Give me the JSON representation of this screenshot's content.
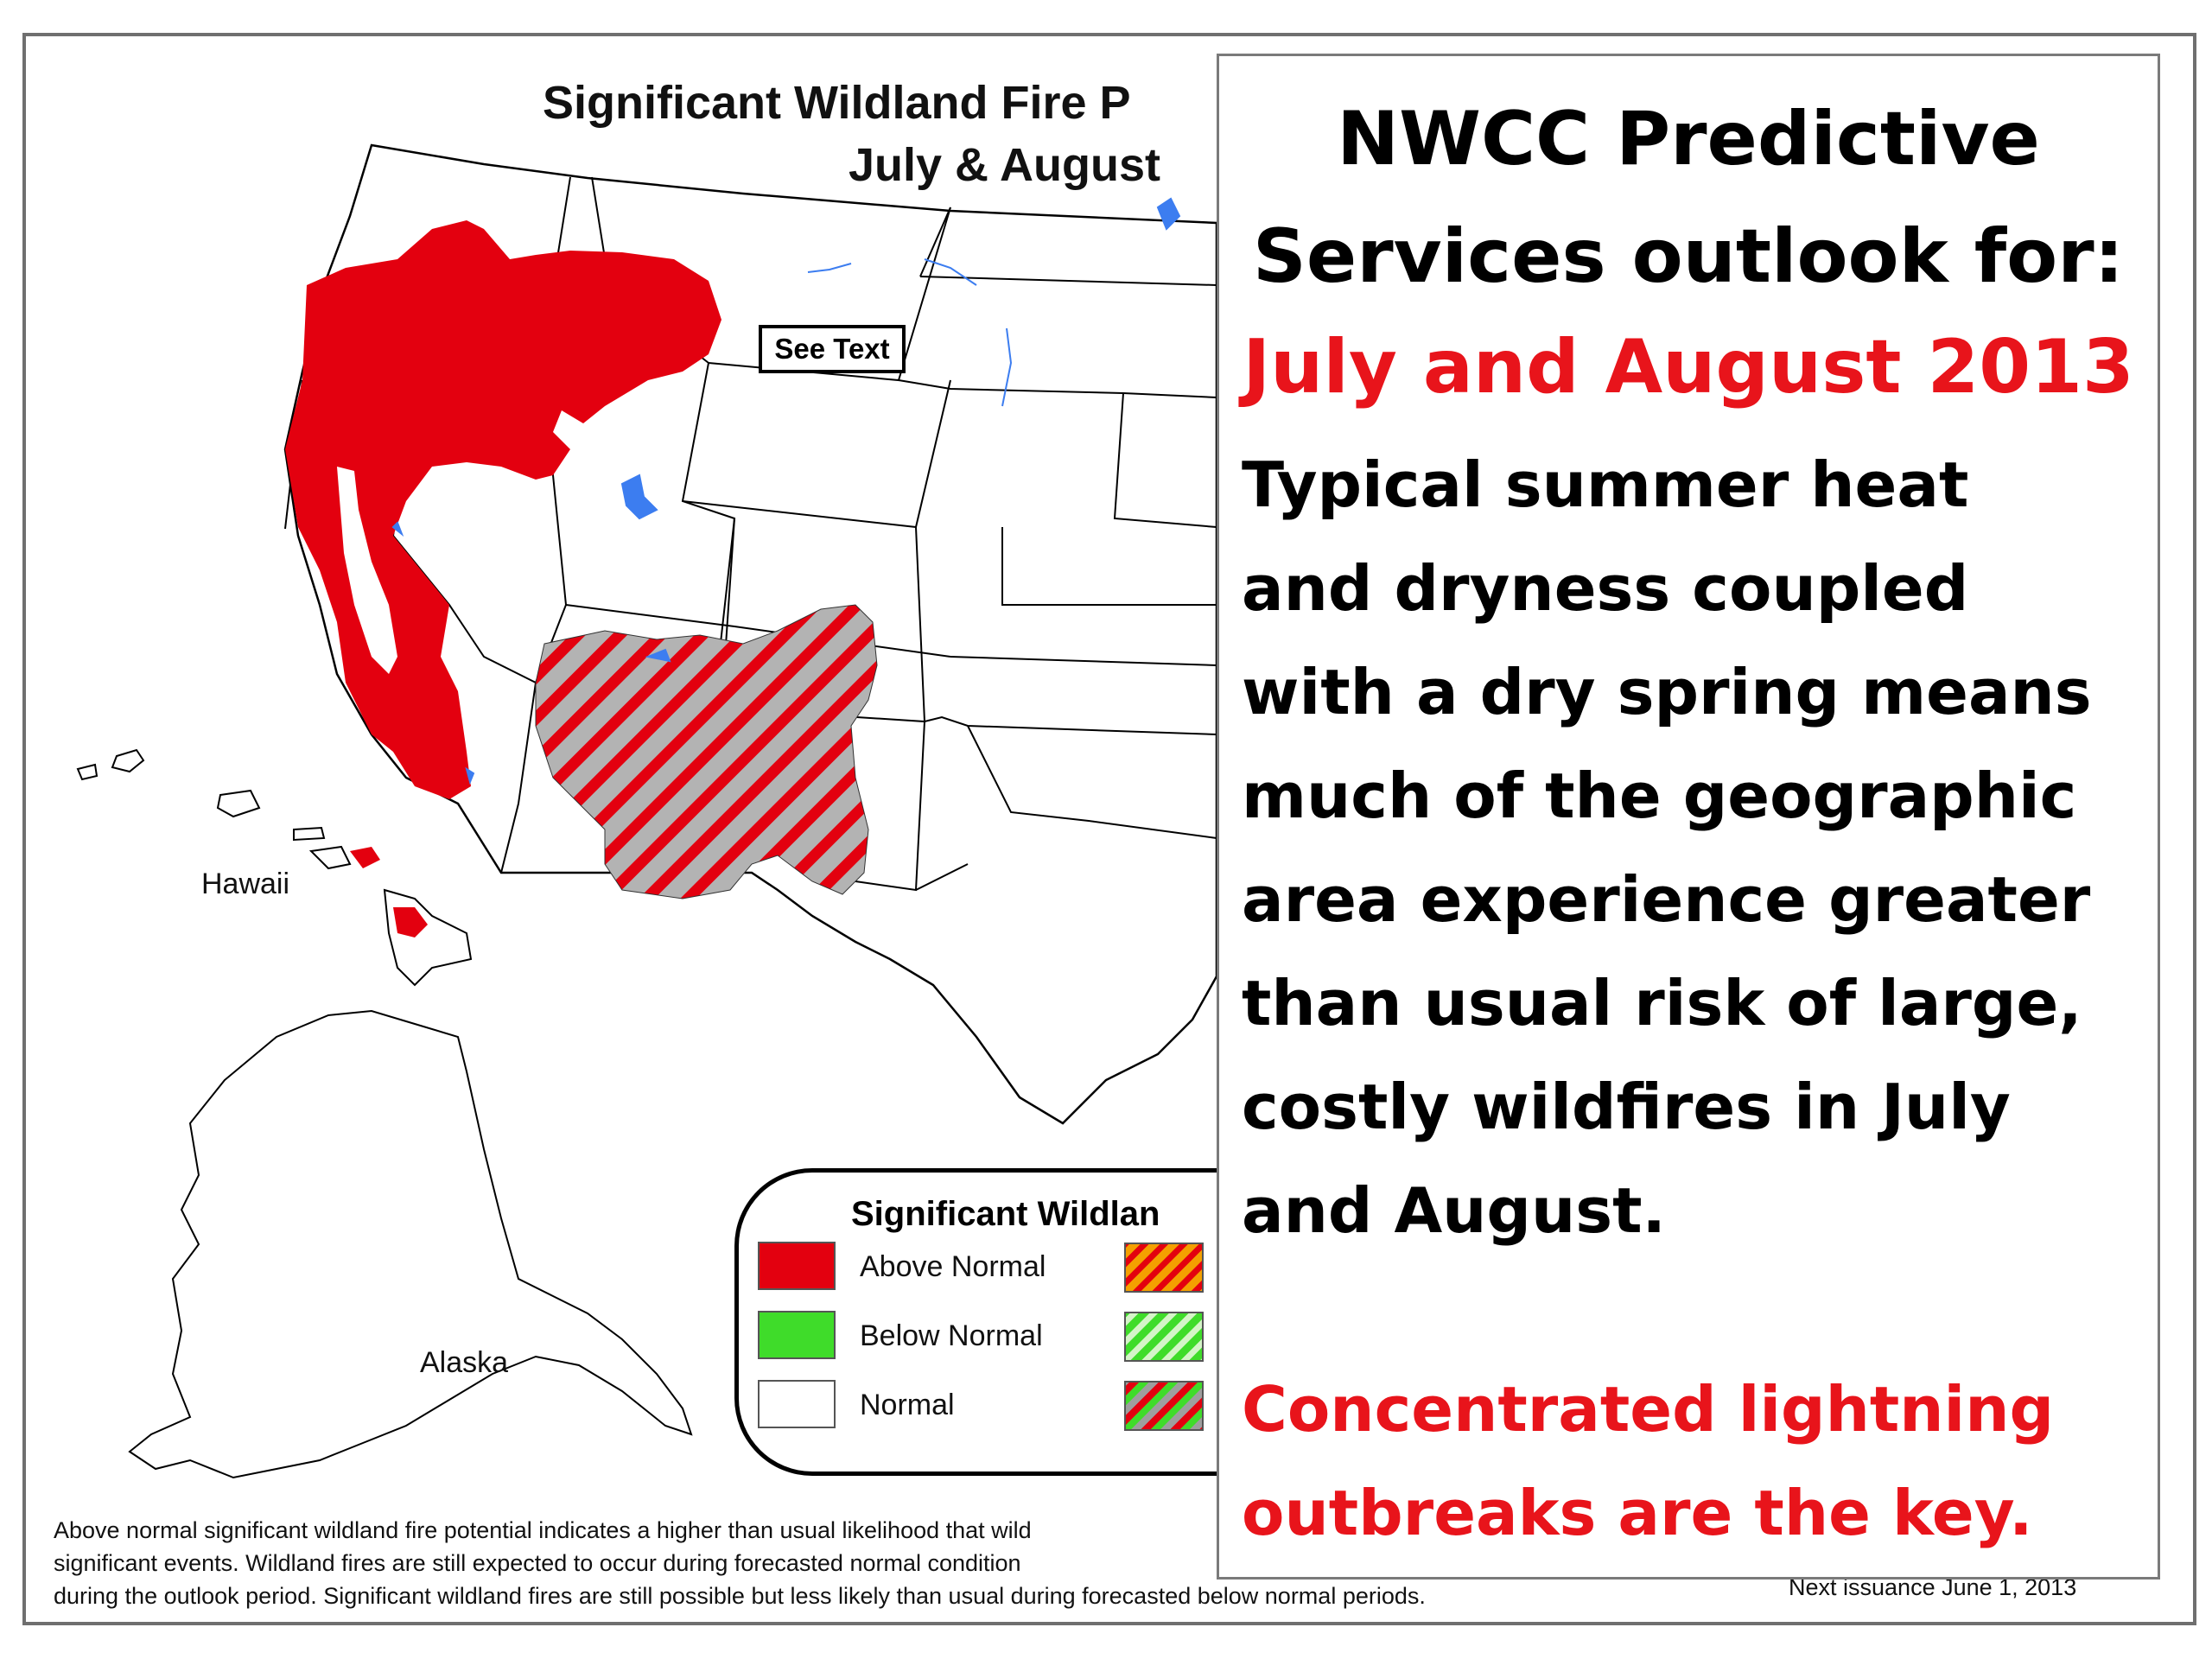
{
  "map": {
    "title_line1": "Significant Wildland Fire P",
    "title_line2": "July & August",
    "see_text": "See Text",
    "hawaii_label": "Hawaii",
    "alaska_label": "Alaska"
  },
  "legend": {
    "title": "Significant Wildlan",
    "items": [
      {
        "label": "Above Normal",
        "color": "#e3000f"
      },
      {
        "label": "Below Normal",
        "color": "#3fdc2a"
      },
      {
        "label": "Normal",
        "color": "#ffffff"
      }
    ],
    "hatch_colors": [
      "#f4a000",
      "#3fdc2a",
      "#9e9e9e"
    ]
  },
  "footnote": {
    "line1": "Above normal significant wildland fire potential indicates a higher than usual likelihood that wild",
    "line2": "significant events.  Wildland fires are still expected to occur during forecasted normal condition",
    "line3": "during the outlook period.  Significant wildland fires are still possible but less likely than usual during forecasted below normal periods.",
    "next_issuance": "Next issuance June 1, 2013"
  },
  "overlay": {
    "heading_line1": "NWCC Predictive",
    "heading_line2": "Services outlook for:",
    "date": "July and August 2013",
    "body_lines": [
      "Typical summer heat",
      "and dryness coupled",
      "with a dry spring means",
      "much of the geographic",
      "area experience greater",
      "than usual risk of large,",
      "costly wildfires in July",
      "and August."
    ],
    "key_lines": [
      "Concentrated lightning",
      "outbreaks are the key."
    ]
  },
  "colors": {
    "above_normal": "#e3000f",
    "hatch_gray": "#b3b3b3",
    "water": "#3c7df0",
    "emphasis_red": "#e8141b"
  }
}
